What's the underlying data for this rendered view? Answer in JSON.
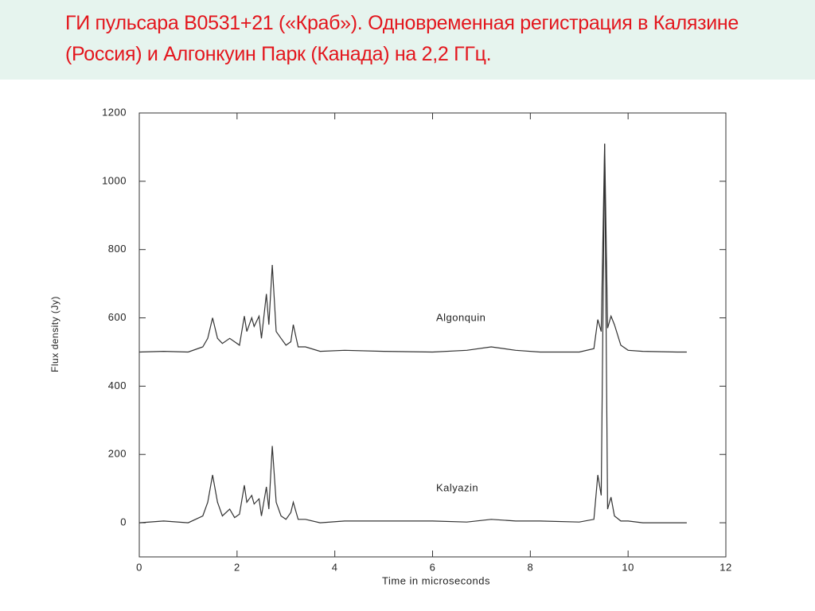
{
  "chart_data": {
    "type": "line",
    "title": "ГИ  пульсара B0531+21 («Краб»). Одновременная регистрация в Калязине (Россия) и Алгонкуин Парк (Канада) на 2,2 ГГц.",
    "x_label": "Time in microseconds",
    "y_label": "Flux density (Jy)",
    "x": [
      0,
      0.5,
      1.0,
      1.3,
      1.4,
      1.5,
      1.6,
      1.7,
      1.85,
      1.95,
      2.05,
      2.15,
      2.2,
      2.3,
      2.35,
      2.45,
      2.5,
      2.6,
      2.65,
      2.72,
      2.8,
      2.9,
      3.0,
      3.1,
      3.15,
      3.25,
      3.4,
      3.7,
      4.2,
      5.0,
      6.0,
      6.7,
      7.2,
      7.7,
      8.2,
      9.0,
      9.3,
      9.38,
      9.45,
      9.52,
      9.58,
      9.65,
      9.72,
      9.85,
      10.0,
      10.3,
      11.0,
      11.2
    ],
    "series": [
      {
        "name": "Algonquin",
        "color": "#333333",
        "values": [
          500,
          502,
          500,
          515,
          540,
          600,
          540,
          525,
          540,
          530,
          520,
          605,
          560,
          600,
          575,
          605,
          540,
          670,
          580,
          755,
          560,
          540,
          520,
          530,
          580,
          515,
          515,
          502,
          505,
          502,
          500,
          505,
          515,
          505,
          500,
          500,
          510,
          595,
          560,
          1110,
          570,
          605,
          580,
          520,
          505,
          502,
          500,
          500
        ]
      },
      {
        "name": "Kalyazin",
        "color": "#333333",
        "values": [
          0,
          5,
          0,
          20,
          60,
          140,
          60,
          20,
          40,
          15,
          25,
          110,
          60,
          80,
          55,
          70,
          20,
          105,
          40,
          225,
          60,
          20,
          10,
          30,
          60,
          10,
          10,
          0,
          5,
          5,
          5,
          2,
          10,
          5,
          5,
          2,
          10,
          140,
          80,
          1110,
          40,
          75,
          20,
          5,
          5,
          0,
          0,
          0
        ]
      }
    ],
    "xlim": [
      0,
      12
    ],
    "xticks": [
      0,
      2,
      4,
      6,
      8,
      10,
      12
    ],
    "ylim": [
      -100,
      1200
    ],
    "yticks": [
      0,
      200,
      400,
      600,
      800,
      1000,
      1200
    ],
    "grid": false
  }
}
